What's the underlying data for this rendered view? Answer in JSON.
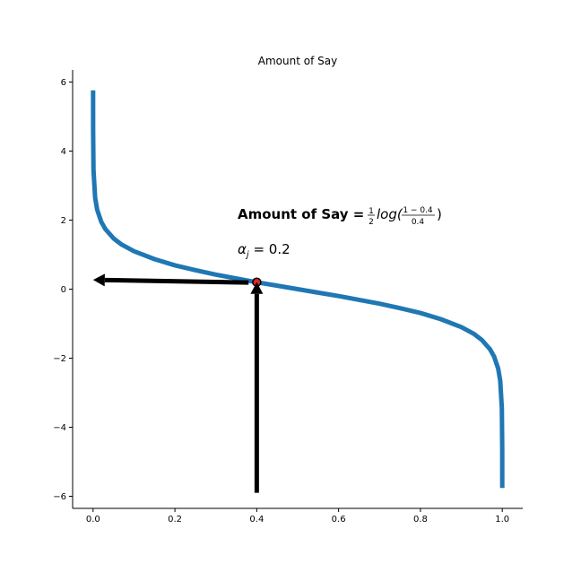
{
  "chart_data": {
    "type": "line",
    "title": "Amount of Say",
    "xlabel": "",
    "ylabel": "",
    "xlim": [
      -0.05,
      1.05
    ],
    "ylim": [
      -6.35,
      6.35
    ],
    "x_ticks": [
      0.0,
      0.2,
      0.4,
      0.6,
      0.8,
      1.0
    ],
    "x_tick_labels": [
      "0.0",
      "0.2",
      "0.4",
      "0.6",
      "0.8",
      "1.0"
    ],
    "y_ticks": [
      -6,
      -4,
      -2,
      0,
      2,
      4,
      6
    ],
    "y_tick_labels": [
      "−6",
      "−4",
      "−2",
      "0",
      "2",
      "4",
      "6"
    ],
    "grid": false,
    "series": [
      {
        "color": "#1f77b4",
        "function": "0.5*ln((1-x)/x)",
        "x": [
          1e-05,
          0.0001,
          0.001,
          0.005,
          0.01,
          0.02,
          0.03,
          0.05,
          0.07,
          0.1,
          0.15,
          0.2,
          0.25,
          0.3,
          0.35,
          0.4,
          0.45,
          0.5,
          0.55,
          0.6,
          0.65,
          0.7,
          0.75,
          0.8,
          0.85,
          0.9,
          0.93,
          0.95,
          0.97,
          0.98,
          0.99,
          0.995,
          0.999,
          0.9999,
          0.99999
        ],
        "y": [
          5.76,
          4.61,
          3.45,
          2.65,
          2.3,
          1.95,
          1.74,
          1.47,
          1.29,
          1.1,
          0.87,
          0.69,
          0.55,
          0.42,
          0.31,
          0.2,
          0.1,
          0.0,
          -0.1,
          -0.2,
          -0.31,
          -0.42,
          -0.55,
          -0.69,
          -0.87,
          -1.1,
          -1.29,
          -1.47,
          -1.74,
          -1.95,
          -2.3,
          -2.65,
          -3.45,
          -4.61,
          -5.76
        ]
      }
    ],
    "highlight_point": {
      "x": 0.4,
      "y": 0.2027,
      "color": "#d62728"
    },
    "arrows": [
      {
        "name": "arrow-up",
        "from": [
          0.4,
          -5.9
        ],
        "to": [
          0.4,
          0.2
        ]
      },
      {
        "name": "arrow-left",
        "from": [
          0.38,
          0.19
        ],
        "to": [
          0.0,
          0.27
        ]
      }
    ],
    "annotations": {
      "formula": {
        "bold_text": "Amount of Say = ",
        "half_num": "1",
        "half_den": "2",
        "log_text": "log(",
        "frac_num": "1 − 0.4",
        "frac_den": "0.4",
        "close": ")",
        "anchor": [
          0.35,
          2.1
        ]
      },
      "alpha": {
        "symbol": "α",
        "subscript": "j",
        "equals": " = 0.2",
        "anchor": [
          0.35,
          1.05
        ]
      }
    }
  }
}
